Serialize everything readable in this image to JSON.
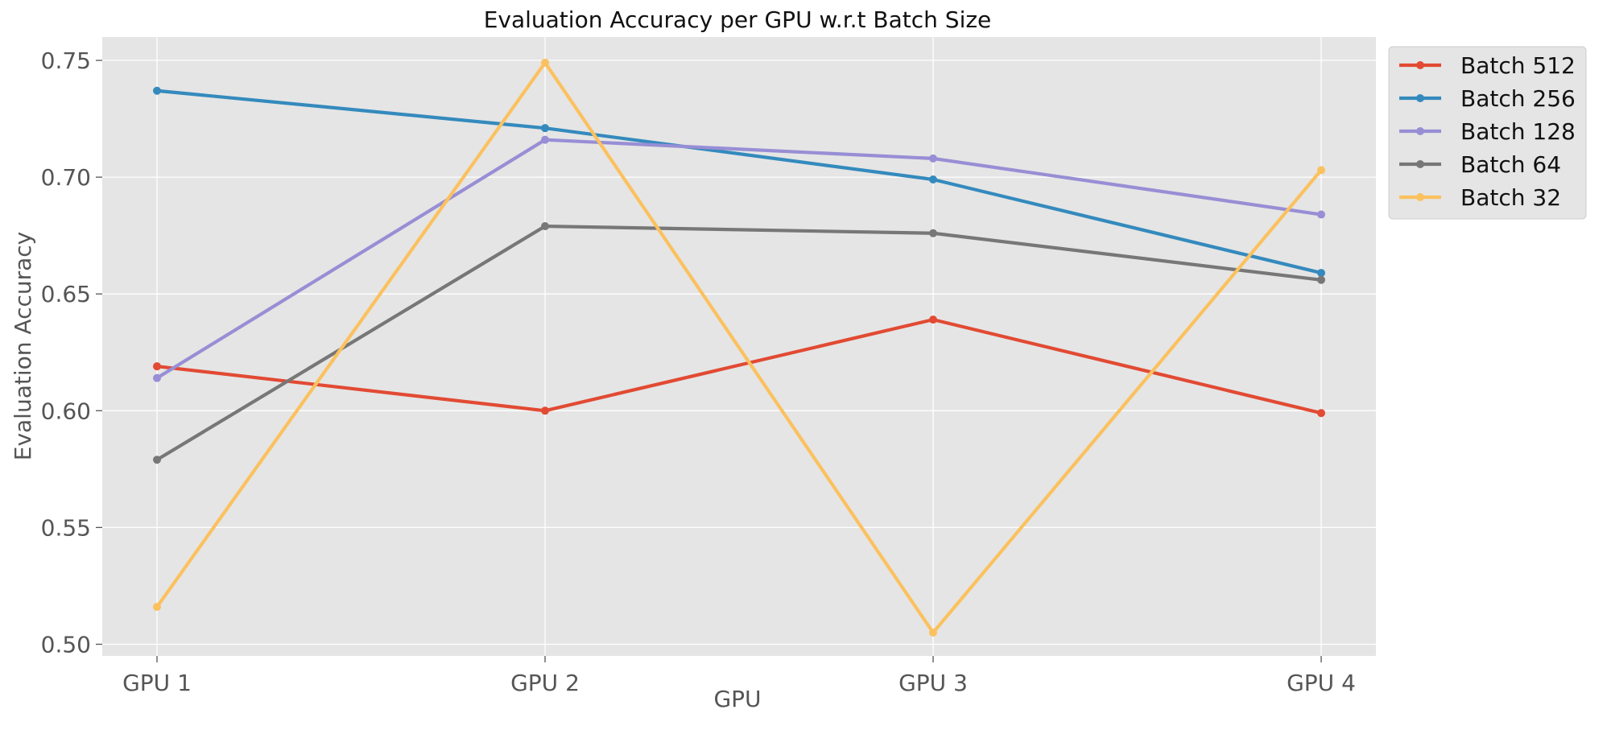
{
  "chart_data": {
    "type": "line",
    "title": "Evaluation Accuracy per GPU w.r.t Batch Size",
    "xlabel": "GPU",
    "ylabel": "Evaluation Accuracy",
    "categories": [
      "GPU 1",
      "GPU 2",
      "GPU 3",
      "GPU 4"
    ],
    "ylim": [
      0.495,
      0.76
    ],
    "yticks": [
      0.5,
      0.55,
      0.6,
      0.65,
      0.7,
      0.75
    ],
    "ytick_labels": [
      "0.50",
      "0.55",
      "0.60",
      "0.65",
      "0.70",
      "0.75"
    ],
    "grid": true,
    "legend_position": "upper right, outside plot area",
    "background": "#e5e5e5",
    "series": [
      {
        "name": "Batch 512",
        "color": "#e24a33",
        "values": [
          0.619,
          0.6,
          0.639,
          0.599
        ]
      },
      {
        "name": "Batch 256",
        "color": "#348abd",
        "values": [
          0.737,
          0.721,
          0.699,
          0.659
        ]
      },
      {
        "name": "Batch 128",
        "color": "#988ed5",
        "values": [
          0.614,
          0.716,
          0.708,
          0.684
        ]
      },
      {
        "name": "Batch 64",
        "color": "#777777",
        "values": [
          0.579,
          0.679,
          0.676,
          0.656
        ]
      },
      {
        "name": "Batch 32",
        "color": "#fbc15e",
        "values": [
          0.516,
          0.749,
          0.505,
          0.703
        ]
      }
    ]
  }
}
